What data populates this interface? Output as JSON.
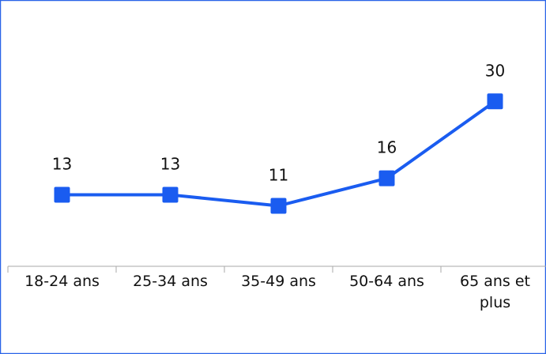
{
  "chart_data": {
    "type": "line",
    "categories": [
      "18-24 ans",
      "25-34 ans",
      "35-49 ans",
      "50-64 ans",
      "65 ans et plus"
    ],
    "series": [
      {
        "color": "#1a5cf0",
        "values": [
          13,
          13,
          11,
          16,
          30
        ]
      }
    ],
    "ylim": [
      0,
      47
    ]
  }
}
